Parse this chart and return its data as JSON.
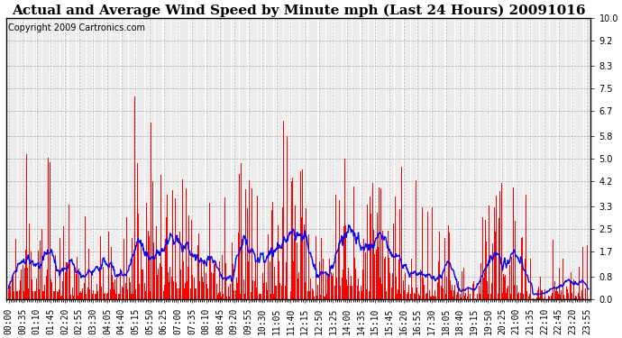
{
  "title": "Actual and Average Wind Speed by Minute mph (Last 24 Hours) 20091016",
  "copyright": "Copyright 2009 Cartronics.com",
  "yticks": [
    0.0,
    0.8,
    1.7,
    2.5,
    3.3,
    4.2,
    5.0,
    5.8,
    6.7,
    7.5,
    8.3,
    9.2,
    10.0
  ],
  "ylim": [
    0.0,
    10.0
  ],
  "bar_color": "#FF0000",
  "line_color": "#0000FF",
  "bg_color": "#FFFFFF",
  "grid_color": "#AAAAAA",
  "title_fontsize": 11,
  "copyright_fontsize": 7,
  "tick_fontsize": 7,
  "n_minutes": 1440,
  "avg_window": 30,
  "seed": 123
}
